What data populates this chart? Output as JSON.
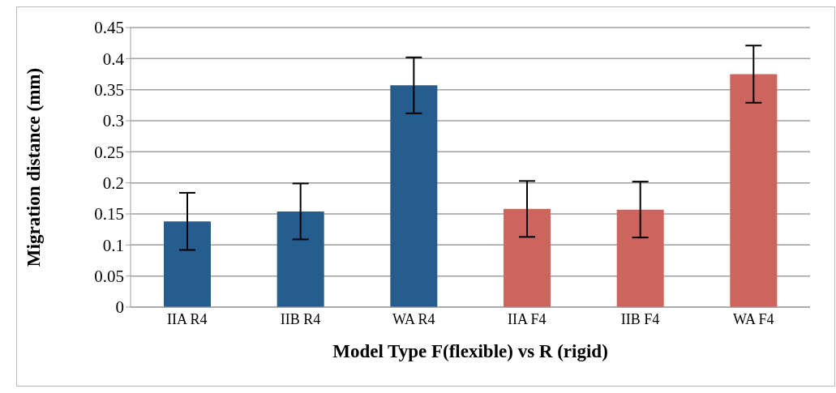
{
  "chart_data": {
    "type": "bar",
    "xlabel": "Model Type F(flexible) vs R (rigid)",
    "ylabel": "Migration distance (mm)",
    "categories": [
      "IIA R4",
      "IIB R4",
      "WA R4",
      "IIA F4",
      "IIB F4",
      "WA F4"
    ],
    "values": [
      0.138,
      0.154,
      0.357,
      0.158,
      0.157,
      0.375
    ],
    "errors": [
      0.046,
      0.045,
      0.045,
      0.045,
      0.045,
      0.046
    ],
    "colors": [
      "#265d8f",
      "#265d8f",
      "#265d8f",
      "#cb655e",
      "#cb655e",
      "#cb655e"
    ],
    "ylim": [
      0,
      0.45
    ],
    "yticks": [
      0,
      0.05,
      0.1,
      0.15,
      0.2,
      0.25,
      0.3,
      0.35,
      0.4,
      0.45
    ],
    "grid": "y"
  }
}
